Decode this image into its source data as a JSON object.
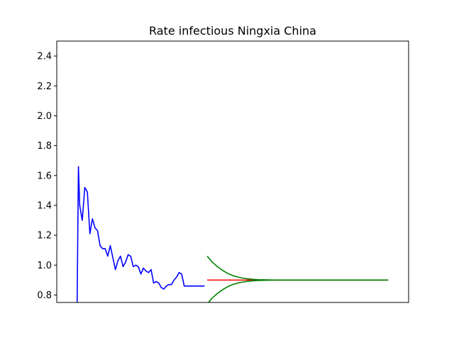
{
  "chart_data": {
    "type": "line",
    "title": "Rate infectious Ningxia China",
    "xlabel": "",
    "ylabel": "",
    "ylim": [
      0.75,
      2.5
    ],
    "yticks": [
      0.8,
      1.0,
      1.2,
      1.4,
      1.6,
      1.8,
      2.0,
      2.2,
      2.4
    ],
    "ytick_labels": [
      "0.8",
      "1.0",
      "1.2",
      "1.4",
      "1.6",
      "1.8",
      "2.0",
      "2.2",
      "2.4"
    ],
    "xlim": [
      -8,
      130
    ],
    "x_ticks_visible": false,
    "grid": false,
    "legend": "none",
    "colors": {
      "observed": "#0000ff",
      "forecast": "#ff0000",
      "bounds": "#008000"
    },
    "series": [
      {
        "role": "observed",
        "x": [
          0,
          0.5,
          1,
          2,
          3,
          4,
          5,
          6,
          7,
          8,
          9,
          10,
          11,
          12,
          13,
          14,
          15,
          16,
          17,
          18,
          19,
          20,
          21,
          22,
          23,
          24,
          25,
          26,
          27,
          28,
          29,
          30,
          31,
          32,
          33,
          34,
          35,
          36,
          37,
          38,
          39,
          40,
          41,
          42,
          43,
          44,
          45,
          46,
          47,
          48,
          49,
          50
        ],
        "values": [
          0.75,
          1.66,
          1.4,
          1.3,
          1.52,
          1.49,
          1.21,
          1.31,
          1.25,
          1.23,
          1.13,
          1.11,
          1.11,
          1.06,
          1.13,
          1.05,
          0.97,
          1.03,
          1.06,
          0.99,
          1.02,
          1.07,
          1.06,
          0.99,
          1.0,
          0.99,
          0.94,
          0.98,
          0.96,
          0.95,
          0.97,
          0.88,
          0.89,
          0.88,
          0.85,
          0.84,
          0.86,
          0.87,
          0.87,
          0.9,
          0.92,
          0.95,
          0.94,
          0.86,
          0.86,
          0.86,
          0.86,
          0.86,
          0.86,
          0.86,
          0.86,
          0.86
        ]
      },
      {
        "role": "forecast",
        "x": [
          51,
          122
        ],
        "values": [
          0.9,
          0.9
        ]
      },
      {
        "role": "upper-bound",
        "x": [
          51,
          53,
          55,
          57,
          59,
          61,
          63,
          65,
          67,
          69,
          71,
          73,
          75,
          78,
          82,
          90,
          100,
          122
        ],
        "values": [
          1.06,
          1.02,
          0.99,
          0.965,
          0.945,
          0.93,
          0.92,
          0.913,
          0.908,
          0.905,
          0.903,
          0.902,
          0.901,
          0.9,
          0.9,
          0.9,
          0.9,
          0.9
        ]
      },
      {
        "role": "lower-bound",
        "x": [
          51,
          53,
          55,
          57,
          59,
          61,
          63,
          65,
          67,
          69,
          71,
          73,
          75,
          78,
          82,
          90,
          100,
          122
        ],
        "values": [
          0.74,
          0.78,
          0.81,
          0.835,
          0.855,
          0.87,
          0.88,
          0.887,
          0.892,
          0.895,
          0.897,
          0.898,
          0.899,
          0.9,
          0.9,
          0.9,
          0.9,
          0.9
        ]
      }
    ]
  }
}
